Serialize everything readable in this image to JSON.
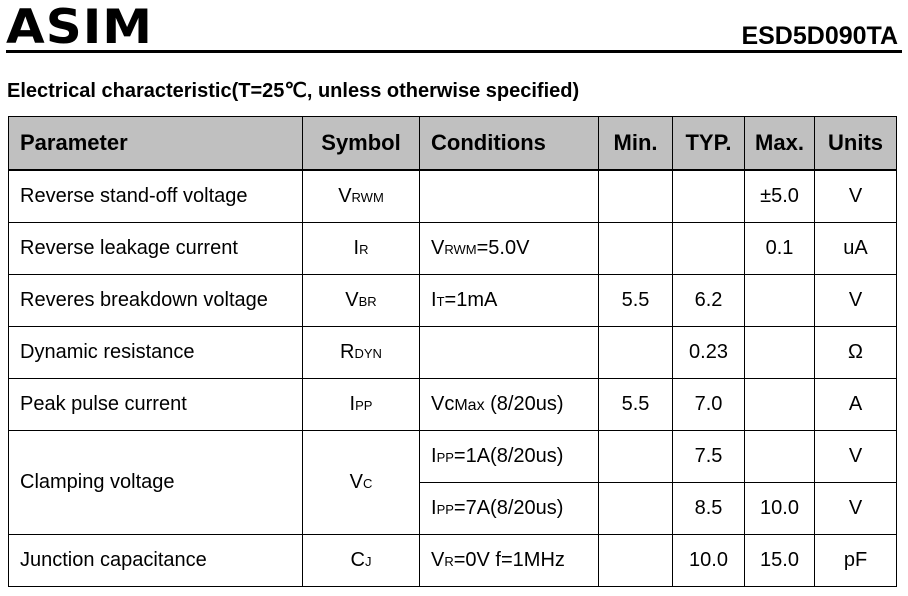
{
  "header": {
    "logo": "ASIM",
    "part_number": "ESD5D090TA"
  },
  "section_title": "Electrical characteristic(T=25℃,  unless otherwise specified)",
  "table": {
    "headers": [
      "Parameter",
      "Symbol",
      "Conditions",
      "Min.",
      "TYP.",
      "Max.",
      "Units"
    ],
    "rows": [
      {
        "parameter": "Reverse stand-off voltage",
        "symbol": "V",
        "symbol_sub": "RWM",
        "condition": "",
        "condition_sub": "",
        "condition_rest": "",
        "min": "",
        "typ": "",
        "max": "±5.0",
        "units": "V"
      },
      {
        "parameter": "Reverse leakage current",
        "symbol": "I",
        "symbol_sub": "R",
        "condition": "V",
        "condition_sub": "RWM",
        "condition_rest": "=5.0V",
        "min": "",
        "typ": "",
        "max": "0.1",
        "units": "uA"
      },
      {
        "parameter": "Reveres breakdown voltage",
        "symbol": "V",
        "symbol_sub": "BR",
        "condition": "I",
        "condition_sub": "T",
        "condition_rest": "=1mA",
        "min": "5.5",
        "typ": "6.2",
        "max": "",
        "units": "V"
      },
      {
        "parameter": "Dynamic resistance",
        "symbol": "R",
        "symbol_sub": "DYN",
        "condition": "",
        "condition_sub": "",
        "condition_rest": "",
        "min": "",
        "typ": "0.23",
        "max": "",
        "units": "Ω"
      },
      {
        "parameter": "Peak pulse current",
        "symbol": "I",
        "symbol_sub": "PP",
        "condition": "Vc",
        "condition_sub": "Max",
        "condition_rest": " (8/20us)",
        "min": "5.5",
        "typ": "7.0",
        "max": "",
        "units": "A"
      }
    ],
    "clamping": {
      "parameter": "Clamping voltage",
      "symbol": "V",
      "symbol_sub": "C",
      "rows": [
        {
          "condition": "I",
          "condition_sub": "PP",
          "condition_rest": "=1A(8/20us)",
          "min": "",
          "typ": "7.5",
          "max": "",
          "units": "V"
        },
        {
          "condition": "I",
          "condition_sub": "PP",
          "condition_rest": "=7A(8/20us)",
          "min": "",
          "typ": "8.5",
          "max": "10.0",
          "units": "V"
        }
      ]
    },
    "junction": {
      "parameter": "Junction capacitance",
      "symbol": "C",
      "symbol_sub": "J",
      "condition": "V",
      "condition_sub": "R",
      "condition_rest": "=0V f=1MHz",
      "min": "",
      "typ": "10.0",
      "max": "15.0",
      "units": "pF"
    }
  }
}
